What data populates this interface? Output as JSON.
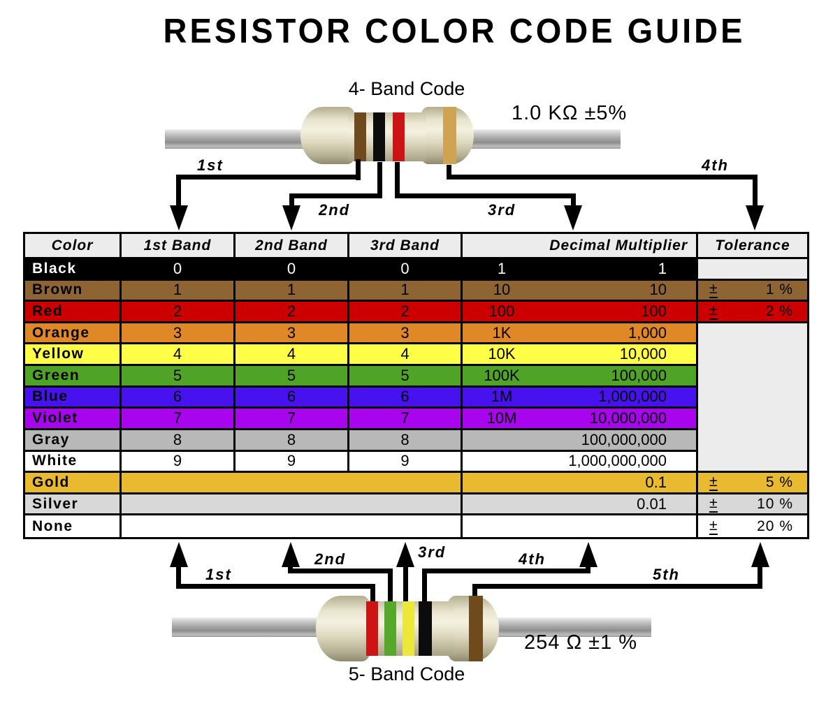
{
  "title": "RESISTOR COLOR CODE GUIDE",
  "four_band": {
    "label": "4- Band Code",
    "value": "1.0 KΩ  ±5%",
    "bands": [
      "brown",
      "black",
      "red",
      "gold"
    ]
  },
  "five_band": {
    "label": "5- Band Code",
    "value": "254 Ω  ±1 %",
    "bands": [
      "red",
      "green",
      "yellow",
      "black",
      "brown"
    ]
  },
  "band_palette": {
    "brown": "#6f4a1c",
    "black": "#0c0c0c",
    "red": "#cc1414",
    "gold": "#d0a352",
    "green": "#55a82a",
    "yellow": "#ece83a"
  },
  "arrows": {
    "top": [
      "1st",
      "2nd",
      "3rd",
      "4th"
    ],
    "bottom": [
      "1st",
      "2nd",
      "3rd",
      "4th",
      "5th"
    ]
  },
  "table": {
    "headers": [
      "Color",
      "1st Band",
      "2nd Band",
      "3rd Band",
      "Decimal Multiplier",
      "Tolerance"
    ],
    "plus_minus": "±",
    "empty_bg": "#ececec",
    "rows": [
      {
        "color": "Black",
        "bg": "#000000",
        "fg": "#ffffff",
        "bands": [
          "0",
          "0",
          "0"
        ],
        "mult_short": "1",
        "mult_long": "1",
        "tolerance": "",
        "tol_own_empty": true
      },
      {
        "color": "Brown",
        "bg": "#8f6433",
        "fg": "#000000",
        "bands": [
          "1",
          "1",
          "1"
        ],
        "mult_short": "10",
        "mult_long": "10",
        "tolerance": "1 %"
      },
      {
        "color": "Red",
        "bg": "#cc0000",
        "fg": "#000000",
        "bands": [
          "2",
          "2",
          "2"
        ],
        "mult_short": "100",
        "mult_long": "100",
        "tolerance": "2 %"
      },
      {
        "color": "Orange",
        "bg": "#e08828",
        "fg": "#000000",
        "bands": [
          "3",
          "3",
          "3"
        ],
        "mult_short": "1K",
        "mult_long": "1,000",
        "tol_merged_start": true
      },
      {
        "color": "Yellow",
        "bg": "#ffff48",
        "fg": "#000000",
        "bands": [
          "4",
          "4",
          "4"
        ],
        "mult_short": "10K",
        "mult_long": "10,000"
      },
      {
        "color": "Green",
        "bg": "#4fa428",
        "fg": "#000000",
        "bands": [
          "5",
          "5",
          "5"
        ],
        "mult_short": "100K",
        "mult_long": "100,000"
      },
      {
        "color": "Blue",
        "bg": "#4812ee",
        "fg": "#000000",
        "bands": [
          "6",
          "6",
          "6"
        ],
        "mult_short": "1M",
        "mult_long": "1,000,000"
      },
      {
        "color": "Violet",
        "bg": "#a805ee",
        "fg": "#000000",
        "bands": [
          "7",
          "7",
          "7"
        ],
        "mult_short": "10M",
        "mult_long": "10,000,000"
      },
      {
        "color": "Gray",
        "bg": "#b8b8b8",
        "fg": "#000000",
        "bands": [
          "8",
          "8",
          "8"
        ],
        "mult_short": "",
        "mult_long": "100,000,000"
      },
      {
        "color": "White",
        "bg": "#ffffff",
        "fg": "#000000",
        "bands": [
          "9",
          "9",
          "9"
        ],
        "mult_short": "",
        "mult_long": "1,000,000,000"
      },
      {
        "color": "Gold",
        "bg": "#e9b92f",
        "fg": "#000000",
        "bands_merged": true,
        "mult_short": "",
        "mult_long": "0.1",
        "tolerance": "5 %"
      },
      {
        "color": "Silver",
        "bg": "#d8d8d8",
        "fg": "#000000",
        "bands_merged": true,
        "mult_short": "",
        "mult_long": "0.01",
        "tolerance": "10 %"
      },
      {
        "color": "None",
        "bg": "#ffffff",
        "fg": "#000000",
        "bands_merged": true,
        "mult_short": "",
        "mult_long": "",
        "tolerance": "20 %"
      }
    ]
  }
}
